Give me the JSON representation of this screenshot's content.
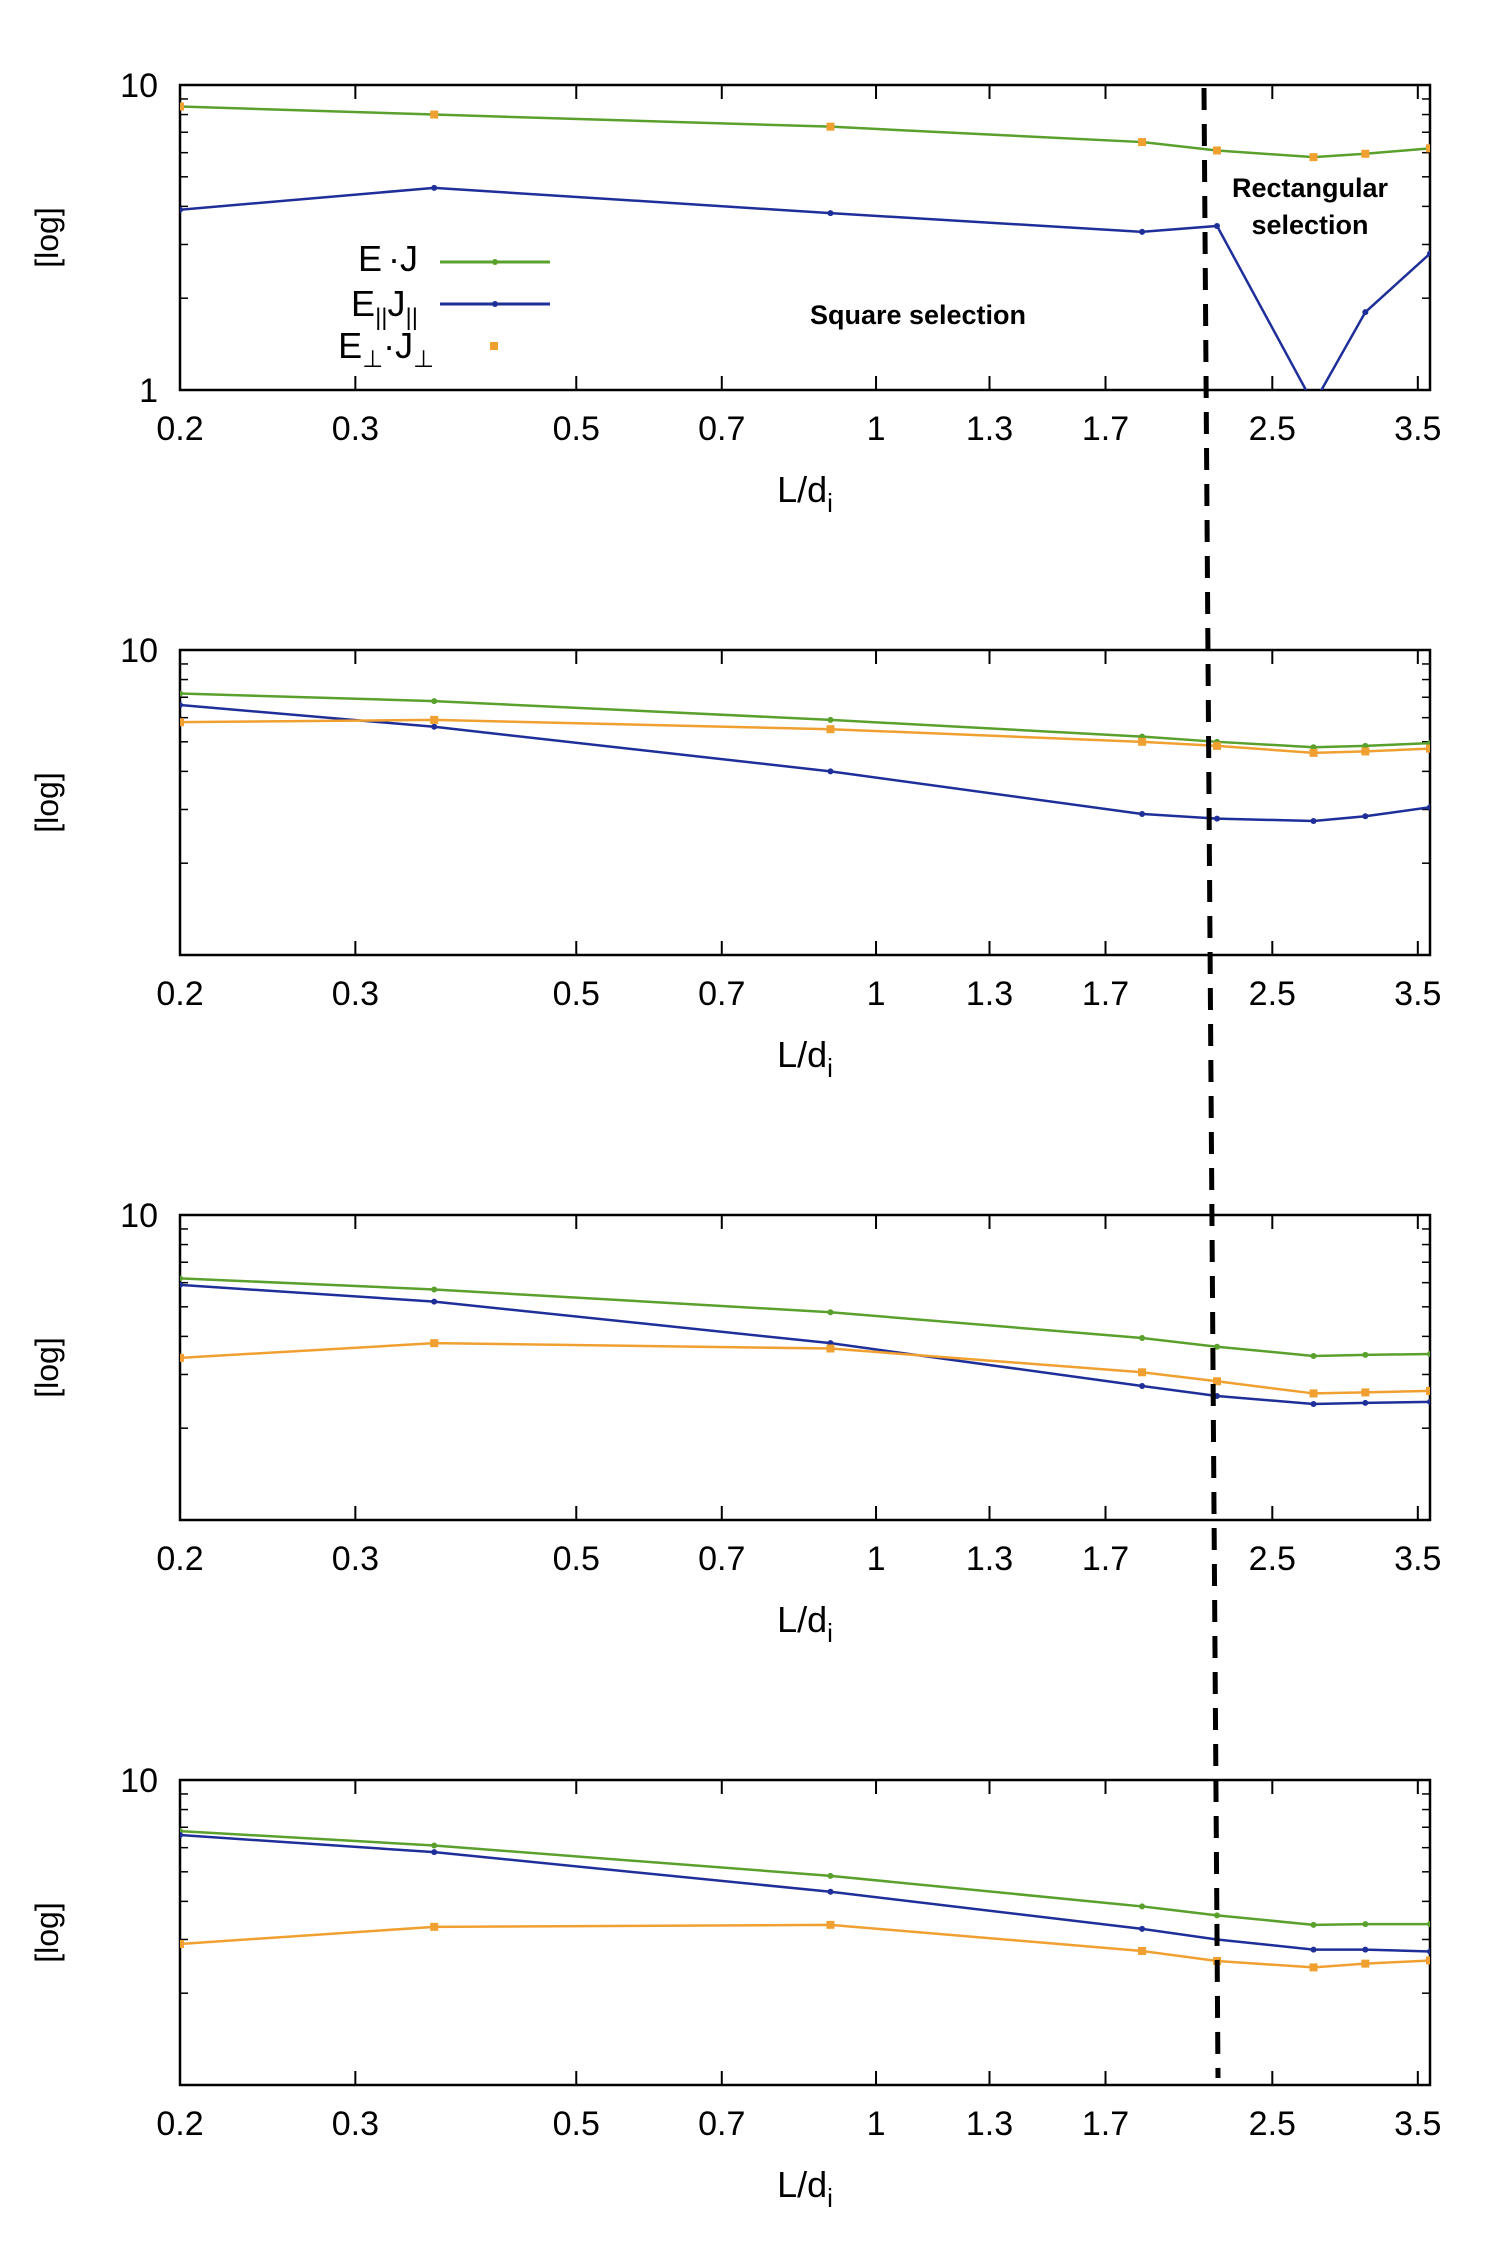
{
  "chart_data": [
    {
      "type": "line",
      "panel": 1,
      "x": [
        0.2,
        0.36,
        0.9,
        1.85,
        2.2,
        2.75,
        3.1,
        3.6
      ],
      "series": [
        {
          "name": "E·J",
          "label_main": "E",
          "label_op": "·J",
          "color": "#5aa02c",
          "marker": "dot",
          "values": [
            8.5,
            8.0,
            7.3,
            6.5,
            6.1,
            5.8,
            5.95,
            6.2
          ]
        },
        {
          "name": "E||J||",
          "label_main": "E",
          "label_sub1": "||",
          "label_mid": "J",
          "label_sub2": "||",
          "color": "#1f2f99",
          "marker": "dot",
          "values": [
            3.9,
            4.6,
            3.8,
            3.3,
            3.45,
            0.9,
            1.8,
            2.8
          ]
        },
        {
          "name": "E⊥·J⊥",
          "label_main": "E",
          "label_sub1": "⊥",
          "label_mid": "·J",
          "label_sub2": "⊥",
          "color": "#f0a030",
          "marker": "square",
          "points_only": true,
          "values": [
            8.5,
            8.0,
            7.3,
            6.5,
            6.1,
            5.8,
            5.95,
            6.2
          ]
        }
      ],
      "xlabel": "L/d",
      "xlabel_sub": "i",
      "ylabel": "[log]",
      "ytick_labels": [
        "10",
        "1"
      ],
      "annotations": [
        "Square selection",
        "Rectangular",
        "selection"
      ]
    },
    {
      "type": "line",
      "panel": 2,
      "x": [
        0.2,
        0.36,
        0.9,
        1.85,
        2.2,
        2.75,
        3.1,
        3.6
      ],
      "series": [
        {
          "name": "E·J",
          "color": "#5aa02c",
          "marker": "dot",
          "values": [
            7.2,
            6.8,
            5.9,
            5.2,
            5.0,
            4.8,
            4.85,
            4.95
          ]
        },
        {
          "name": "E||J||",
          "color": "#1f2f99",
          "marker": "dot",
          "values": [
            6.6,
            5.6,
            4.0,
            2.9,
            2.8,
            2.75,
            2.85,
            3.05
          ]
        },
        {
          "name": "E⊥·J⊥",
          "color": "#f0a030",
          "marker": "square",
          "values": [
            5.8,
            5.9,
            5.5,
            5.0,
            4.85,
            4.6,
            4.65,
            4.75
          ]
        }
      ],
      "xlabel": "L/d",
      "xlabel_sub": "i",
      "ylabel": "[log]",
      "ytick_labels": [
        "10"
      ]
    },
    {
      "type": "line",
      "panel": 3,
      "x": [
        0.2,
        0.36,
        0.9,
        1.85,
        2.2,
        2.75,
        3.1,
        3.6
      ],
      "series": [
        {
          "name": "E·J",
          "color": "#5aa02c",
          "marker": "dot",
          "values": [
            6.2,
            5.7,
            4.8,
            3.95,
            3.7,
            3.45,
            3.48,
            3.5
          ]
        },
        {
          "name": "E||J||",
          "color": "#1f2f99",
          "marker": "dot",
          "values": [
            5.9,
            5.2,
            3.8,
            2.75,
            2.55,
            2.4,
            2.42,
            2.44
          ]
        },
        {
          "name": "E⊥·J⊥",
          "color": "#f0a030",
          "marker": "square",
          "values": [
            3.4,
            3.8,
            3.65,
            3.05,
            2.85,
            2.6,
            2.62,
            2.65
          ]
        }
      ],
      "xlabel": "L/d",
      "xlabel_sub": "i",
      "ylabel": "[log]",
      "ytick_labels": [
        "10"
      ]
    },
    {
      "type": "line",
      "panel": 4,
      "x": [
        0.2,
        0.36,
        0.9,
        1.85,
        2.2,
        2.75,
        3.1,
        3.6
      ],
      "series": [
        {
          "name": "E·J",
          "color": "#5aa02c",
          "marker": "dot",
          "values": [
            6.8,
            6.1,
            4.85,
            3.85,
            3.6,
            3.35,
            3.37,
            3.37
          ]
        },
        {
          "name": "E||J||",
          "color": "#1f2f99",
          "marker": "dot",
          "values": [
            6.6,
            5.8,
            4.3,
            3.25,
            3.0,
            2.78,
            2.78,
            2.74
          ]
        },
        {
          "name": "E⊥·J⊥",
          "color": "#f0a030",
          "marker": "square",
          "values": [
            2.9,
            3.3,
            3.35,
            2.75,
            2.55,
            2.43,
            2.5,
            2.56
          ]
        }
      ],
      "xlabel": "L/d",
      "xlabel_sub": "i",
      "ylabel": "[log]",
      "ytick_labels": [
        "10"
      ]
    }
  ],
  "xticks": [
    {
      "value": 0.2,
      "label": "0.2"
    },
    {
      "value": 0.3,
      "label": "0.3"
    },
    {
      "value": 0.5,
      "label": "0.5"
    },
    {
      "value": 0.7,
      "label": "0.7"
    },
    {
      "value": 1.0,
      "label": "1"
    },
    {
      "value": 1.3,
      "label": "1.3"
    },
    {
      "value": 1.7,
      "label": "1.7"
    },
    {
      "value": 2.5,
      "label": "2.5"
    },
    {
      "value": 3.5,
      "label": "3.5"
    }
  ],
  "x_scale": "log",
  "y_scale": "log",
  "xlim": [
    0.2,
    3.6
  ],
  "ylim": [
    1,
    10
  ],
  "divider": {
    "style": "dashed",
    "color": "#000000",
    "x_value": 2.2
  },
  "legend": {
    "placement": "top-left",
    "panel": 1
  }
}
